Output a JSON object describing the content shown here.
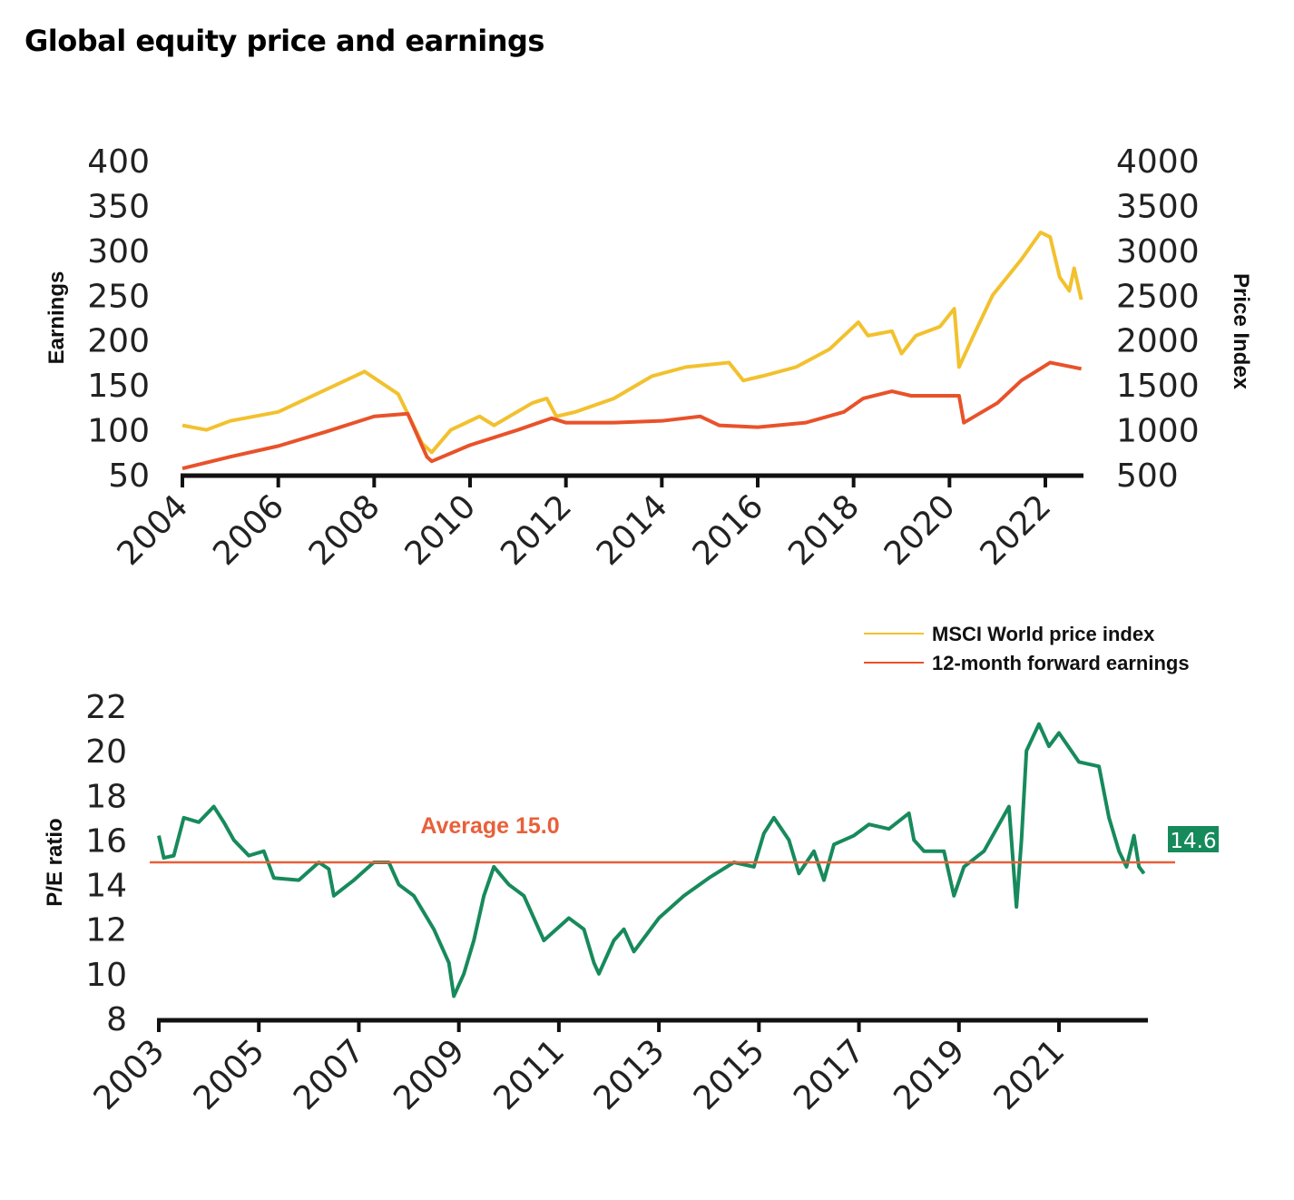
{
  "title": "Global equity price and earnings",
  "chart_data": [
    {
      "type": "line",
      "xlabel": "",
      "ylabel": "Earnings",
      "ylabel_right": "Price Index",
      "xlim": [
        2004,
        2022.75
      ],
      "ylim": [
        50,
        400
      ],
      "ylim_right": [
        500,
        4000
      ],
      "x_ticks": [
        "2004",
        "2006",
        "2008",
        "2010",
        "2012",
        "2014",
        "2016",
        "2018",
        "2020",
        "2022"
      ],
      "y_ticks": [
        "400",
        "350",
        "300",
        "250",
        "200",
        "150",
        "100",
        "50"
      ],
      "y_ticks_right": [
        "4000",
        "3500",
        "3000",
        "2500",
        "2000",
        "1500",
        "1000",
        "500"
      ],
      "legend_position": "bottom-right",
      "series": [
        {
          "name": "MSCI World price index",
          "axis": "right",
          "color": "#f2c12e",
          "x": [
            2004,
            2004.5,
            2005,
            2006,
            2007,
            2007.8,
            2008.5,
            2009.0,
            2009.2,
            2009.6,
            2010.2,
            2010.5,
            2011.3,
            2011.6,
            2011.8,
            2012.2,
            2013,
            2013.8,
            2014.5,
            2015.4,
            2015.7,
            2016.1,
            2016.8,
            2017.5,
            2018.1,
            2018.3,
            2018.8,
            2019.0,
            2019.3,
            2019.8,
            2020.1,
            2020.2,
            2020.5,
            2020.9,
            2021.5,
            2021.9,
            2022.1,
            2022.3,
            2022.5,
            2022.6,
            2022.75
          ],
          "values": [
            1050,
            1000,
            1100,
            1200,
            1450,
            1650,
            1400,
            850,
            750,
            1000,
            1150,
            1050,
            1300,
            1350,
            1150,
            1200,
            1350,
            1600,
            1700,
            1750,
            1550,
            1600,
            1700,
            1900,
            2200,
            2050,
            2100,
            1850,
            2050,
            2150,
            2350,
            1700,
            2050,
            2500,
            2900,
            3200,
            3150,
            2700,
            2550,
            2800,
            2450
          ]
        },
        {
          "name": "12-month forward earnings",
          "axis": "left",
          "color": "#e8522a",
          "x": [
            2004,
            2005,
            2006,
            2007,
            2008,
            2008.7,
            2009.1,
            2009.2,
            2010,
            2011,
            2011.7,
            2012,
            2013,
            2014,
            2014.8,
            2015.2,
            2016,
            2017,
            2017.8,
            2018.2,
            2018.8,
            2019.2,
            2020.2,
            2020.3,
            2021,
            2021.5,
            2022.1,
            2022.75
          ],
          "values": [
            57,
            70,
            82,
            98,
            115,
            118,
            70,
            65,
            83,
            100,
            113,
            108,
            108,
            110,
            115,
            105,
            103,
            108,
            120,
            135,
            143,
            138,
            138,
            108,
            130,
            155,
            175,
            168
          ]
        }
      ]
    },
    {
      "type": "line",
      "xlabel": "",
      "ylabel": "P/E ratio",
      "xlim": [
        2003,
        2022.8
      ],
      "ylim": [
        8,
        22
      ],
      "x_ticks": [
        "2003",
        "2005",
        "2007",
        "2009",
        "2011",
        "2013",
        "2015",
        "2017",
        "2019",
        "2021"
      ],
      "y_ticks": [
        "22",
        "20",
        "18",
        "16",
        "14",
        "12",
        "10",
        "8"
      ],
      "average": {
        "label": "Average 15.0",
        "value": 15.0,
        "color": "#e8603a"
      },
      "last_value_label": "14.6",
      "series": [
        {
          "name": "P/E ratio",
          "color": "#178a5c",
          "x": [
            2003.0,
            2003.1,
            2003.3,
            2003.5,
            2003.8,
            2004.1,
            2004.3,
            2004.5,
            2004.8,
            2005.1,
            2005.3,
            2005.8,
            2006.2,
            2006.4,
            2006.5,
            2006.9,
            2007.3,
            2007.6,
            2007.8,
            2008.1,
            2008.5,
            2008.8,
            2008.9,
            2009.1,
            2009.3,
            2009.5,
            2009.7,
            2010,
            2010.3,
            2010.5,
            2010.7,
            2011.2,
            2011.5,
            2011.7,
            2011.8,
            2012.1,
            2012.3,
            2012.5,
            2013,
            2013.5,
            2014,
            2014.5,
            2014.9,
            2015.1,
            2015.3,
            2015.6,
            2015.8,
            2016.1,
            2016.3,
            2016.5,
            2016.9,
            2017.2,
            2017.6,
            2018.0,
            2018.1,
            2018.3,
            2018.7,
            2018.9,
            2019.1,
            2019.5,
            2020,
            2020.15,
            2020.25,
            2020.35,
            2020.6,
            2020.8,
            2021.0,
            2021.4,
            2021.8,
            2022.0,
            2022.2,
            2022.35,
            2022.5,
            2022.6,
            2022.7
          ],
          "values": [
            16.2,
            15.2,
            15.3,
            17,
            16.8,
            17.5,
            16.8,
            16,
            15.3,
            15.5,
            14.3,
            14.2,
            15,
            14.7,
            13.5,
            14.2,
            15,
            15,
            14,
            13.5,
            12,
            10.5,
            9,
            10,
            11.5,
            13.5,
            14.8,
            14,
            13.5,
            12.5,
            11.5,
            12.5,
            12,
            10.5,
            10,
            11.5,
            12,
            11,
            12.5,
            13.5,
            14.3,
            15,
            14.8,
            16.3,
            17,
            16,
            14.5,
            15.5,
            14.2,
            15.8,
            16.2,
            16.7,
            16.5,
            17.2,
            16,
            15.5,
            15.5,
            13.5,
            14.8,
            15.5,
            17.5,
            13,
            16,
            20,
            21.2,
            20.2,
            20.8,
            19.5,
            19.3,
            17,
            15.5,
            14.8,
            16.2,
            14.8,
            14.5
          ]
        }
      ]
    }
  ]
}
